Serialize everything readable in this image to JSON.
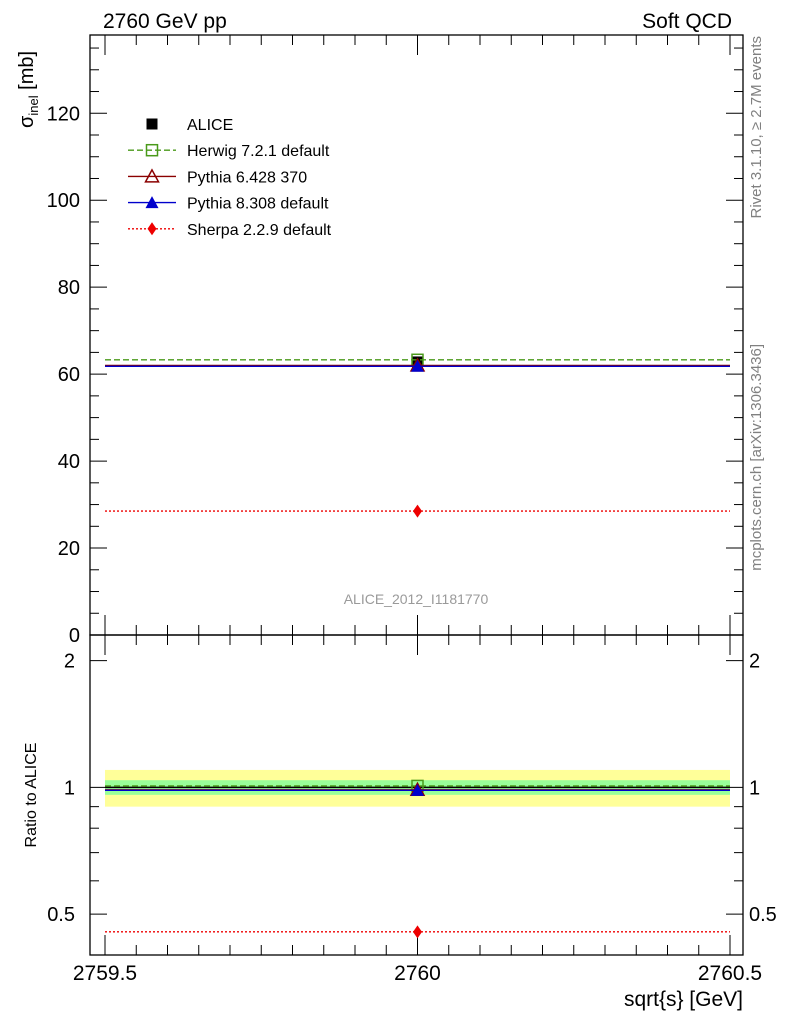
{
  "header": {
    "left": "2760 GeV pp",
    "right": "Soft QCD"
  },
  "side": {
    "rivet": "Rivet 3.1.10, ≥ 2.7M events",
    "mcplots": "mcplots.cern.ch [arXiv:1306.3436]"
  },
  "analysis_id": "ALICE_2012_I1181770",
  "top_ylabel": {
    "main": "σ",
    "sub": "inel",
    "unit": " [mb]"
  },
  "bottom_ylabel": "Ratio to ALICE",
  "xlabel": "sqrt{s} [GeV]",
  "legend": [
    {
      "name": "ALICE",
      "color": "#000000",
      "marker": "filled-square",
      "line": "none"
    },
    {
      "name": "Herwig 7.2.1 default",
      "color": "#4a9a1a",
      "marker": "open-square",
      "line": "dashed"
    },
    {
      "name": "Pythia 6.428 370",
      "color": "#8b0000",
      "marker": "open-triangle",
      "line": "solid"
    },
    {
      "name": "Pythia 8.308 default",
      "color": "#0000cc",
      "marker": "filled-triangle",
      "line": "solid"
    },
    {
      "name": "Sherpa 2.2.9 default",
      "color": "#ee0000",
      "marker": "filled-diamond",
      "line": "dotted"
    }
  ],
  "chart_data": [
    {
      "type": "scatter",
      "panel": "main",
      "x_range": [
        2759.5,
        2760.5
      ],
      "ylim": [
        0,
        138
      ],
      "yticks": [
        "20",
        "40",
        "60",
        "80",
        "100",
        "120",
        "0"
      ],
      "ytick_values": [
        20,
        40,
        60,
        80,
        100,
        120,
        0
      ],
      "series": [
        {
          "name": "ALICE",
          "x": 2760,
          "y": 62.8,
          "ystat": 1.0
        },
        {
          "name": "Herwig 7.2.1 default",
          "x": 2760,
          "y": 63.3
        },
        {
          "name": "Pythia 6.428 370",
          "x": 2760,
          "y": 62.0
        },
        {
          "name": "Pythia 8.308 default",
          "x": 2760,
          "y": 61.8
        },
        {
          "name": "Sherpa 2.2.9 default",
          "x": 2760,
          "y": 28.5
        }
      ]
    },
    {
      "type": "scatter",
      "panel": "ratio",
      "x_range": [
        2759.5,
        2760.5
      ],
      "xticks": [
        "2759.5",
        "2760",
        "2760.5"
      ],
      "ylim": [
        0.4,
        2.3
      ],
      "yscale": "log",
      "yticks": [
        "0.5",
        "1",
        "2"
      ],
      "ytick_values": [
        0.5,
        1,
        2
      ],
      "bands": {
        "inner": [
          0.96,
          1.04
        ],
        "outer": [
          0.9,
          1.1
        ]
      },
      "series": [
        {
          "name": "ALICE",
          "y": 1.0
        },
        {
          "name": "Herwig 7.2.1 default",
          "y": 1.008
        },
        {
          "name": "Pythia 6.428 370",
          "y": 0.987
        },
        {
          "name": "Pythia 8.308 default",
          "y": 0.984
        },
        {
          "name": "Sherpa 2.2.9 default",
          "y": 0.454
        }
      ]
    }
  ]
}
